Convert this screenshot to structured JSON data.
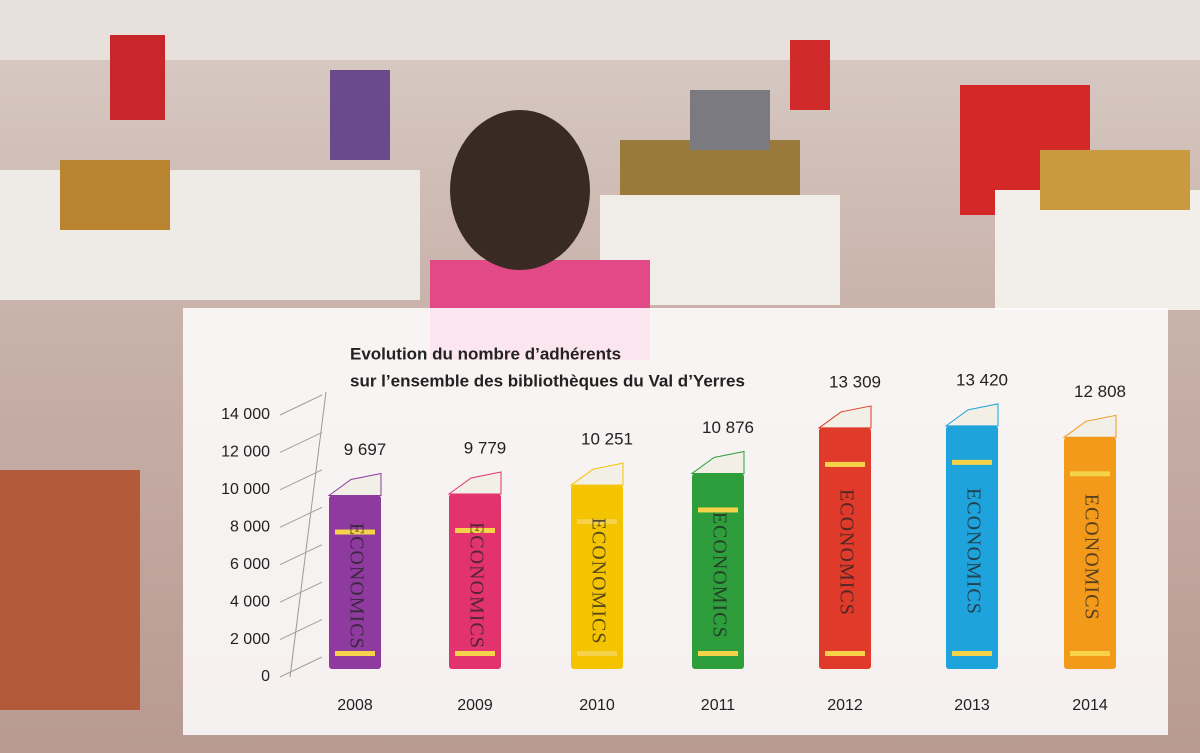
{
  "chart_data": {
    "type": "bar",
    "title": "Evolution du nombre d’adhérents",
    "subtitle": "sur l’ensemble des bibliothèques du Val d’Yerres",
    "categories": [
      "2008",
      "2009",
      "2010",
      "2011",
      "2012",
      "2013",
      "2014"
    ],
    "values": [
      9697,
      9779,
      10251,
      10876,
      13309,
      13420,
      12808
    ],
    "value_labels": [
      "9 697",
      "9 779",
      "10 251",
      "10 876",
      "13 309",
      "13 420",
      "12 808"
    ],
    "colors": [
      "#8e3a9e",
      "#e2336f",
      "#f5c400",
      "#2e9e3c",
      "#e03a2a",
      "#1fa3dc",
      "#f39a1a"
    ],
    "spine_label": "ECONOMICS",
    "ylim": [
      0,
      14000
    ],
    "yticks": [
      0,
      {
        "value": 2000,
        "label": "2 000"
      },
      {
        "value": 4000,
        "label": "4 000"
      },
      {
        "value": 6000,
        "label": "6 000"
      },
      {
        "value": 8000,
        "label": "8 000"
      },
      {
        "value": 10000,
        "label": "10 000"
      },
      {
        "value": 12000,
        "label": "12 000"
      },
      {
        "value": 14000,
        "label": "14 000"
      }
    ],
    "grid": true
  }
}
